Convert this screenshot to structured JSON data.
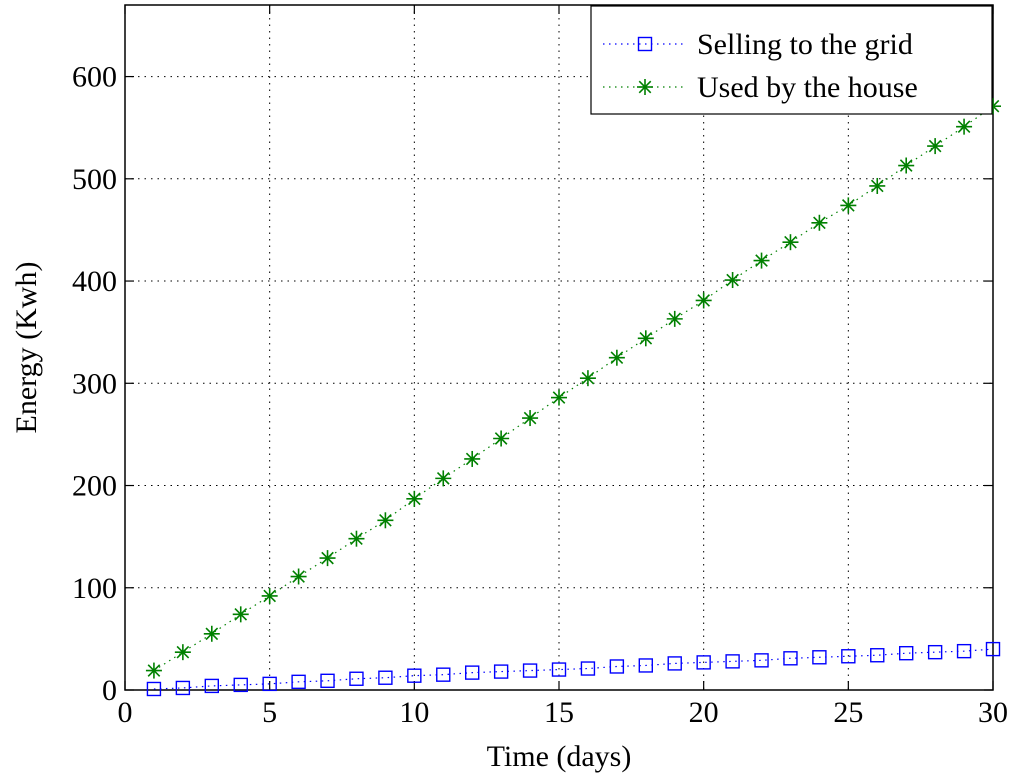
{
  "chart_data": {
    "type": "line",
    "title": "",
    "xlabel": "Time (days)",
    "ylabel": "Energy (Kwh)",
    "xlim": [
      0,
      30
    ],
    "ylim": [
      0,
      670
    ],
    "xticks": [
      0,
      5,
      10,
      15,
      20,
      25,
      30
    ],
    "yticks": [
      0,
      100,
      200,
      300,
      400,
      500,
      600
    ],
    "grid": true,
    "legend_position": "top-right",
    "x": [
      1,
      2,
      3,
      4,
      5,
      6,
      7,
      8,
      9,
      10,
      11,
      12,
      13,
      14,
      15,
      16,
      17,
      18,
      19,
      20,
      21,
      22,
      23,
      24,
      25,
      26,
      27,
      28,
      29,
      30
    ],
    "series": [
      {
        "name": "Selling to the grid",
        "color": "#0000ff",
        "marker": "square",
        "line_style": "dotted",
        "values": [
          1,
          2,
          4,
          5,
          6,
          8,
          9,
          11,
          12,
          14,
          15,
          17,
          18,
          19,
          20,
          21,
          23,
          24,
          26,
          27,
          28,
          29,
          31,
          32,
          33,
          34,
          36,
          37,
          38,
          40
        ]
      },
      {
        "name": "Used by the house",
        "color": "#008000",
        "marker": "asterisk",
        "line_style": "dotted",
        "values": [
          19,
          37,
          55,
          74,
          92,
          111,
          129,
          148,
          166,
          187,
          207,
          226,
          246,
          266,
          286,
          305,
          325,
          344,
          363,
          381,
          401,
          420,
          438,
          457,
          474,
          493,
          513,
          532,
          551,
          571
        ]
      }
    ]
  }
}
